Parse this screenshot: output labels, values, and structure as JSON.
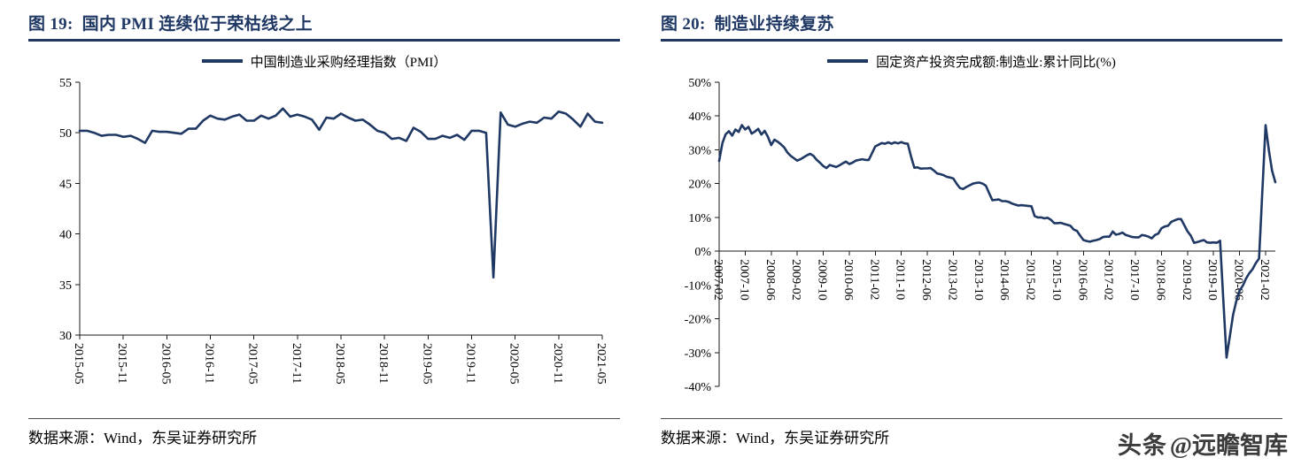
{
  "page": {
    "watermark_brand": "头条",
    "watermark_handle": "@远瞻智库"
  },
  "panels": [
    {
      "title": "图 19:  国内 PMI 连续位于荣枯线之上",
      "source_label": "数据来源：Wind，东吴证券研究所"
    },
    {
      "title": "图 20:  制造业持续复苏",
      "source_label": "数据来源：Wind，东吴证券研究所"
    }
  ],
  "chart_data": [
    {
      "type": "line",
      "title": "国内 PMI 连续位于荣枯线之上",
      "legend": "中国制造业采购经理指数（PMI）",
      "line_color": "#1f3864",
      "grid": false,
      "legend_position": "top-center",
      "ylim": [
        30,
        55
      ],
      "yticks": [
        55,
        50,
        45,
        40,
        35,
        30
      ],
      "ytick_suffix": "",
      "x_tick_every": 6,
      "x_tick_labels": [
        "2015-05",
        "2015-11",
        "2016-05",
        "2016-11",
        "2017-05",
        "2017-11",
        "2018-05",
        "2018-11",
        "2019-05",
        "2019-11",
        "2020-05",
        "2020-11",
        "2021-05"
      ],
      "values": [
        50.2,
        50.2,
        50.0,
        49.7,
        49.8,
        49.8,
        49.6,
        49.7,
        49.4,
        49.0,
        50.2,
        50.1,
        50.1,
        50.0,
        49.9,
        50.4,
        50.4,
        51.2,
        51.7,
        51.4,
        51.3,
        51.6,
        51.8,
        51.2,
        51.2,
        51.7,
        51.4,
        51.7,
        52.4,
        51.6,
        51.8,
        51.6,
        51.3,
        50.3,
        51.5,
        51.4,
        51.9,
        51.5,
        51.2,
        51.3,
        50.8,
        50.2,
        50.0,
        49.4,
        49.5,
        49.2,
        50.5,
        50.1,
        49.4,
        49.4,
        49.7,
        49.5,
        49.8,
        49.3,
        50.2,
        50.2,
        50.0,
        35.7,
        52.0,
        50.8,
        50.6,
        50.9,
        51.1,
        51.0,
        51.5,
        51.4,
        52.1,
        51.9,
        51.3,
        50.6,
        51.9,
        51.1,
        51.0
      ]
    },
    {
      "type": "line",
      "title": "制造业持续复苏",
      "legend": "固定资产投资完成额:制造业:累计同比(%)",
      "line_color": "#1f3864",
      "grid": false,
      "legend_position": "top-center",
      "ylim": [
        -40,
        50
      ],
      "yticks": [
        50,
        40,
        30,
        20,
        10,
        0,
        -10,
        -20,
        -30,
        -40
      ],
      "ytick_suffix": "%",
      "axis_at_zero": true,
      "x_tick_every": 8,
      "x_tick_labels": [
        "2007-02",
        "2007-10",
        "2008-06",
        "2009-02",
        "2009-10",
        "2010-06",
        "2011-02",
        "2011-10",
        "2012-06",
        "2013-02",
        "2013-10",
        "2014-06",
        "2015-02",
        "2015-10",
        "2016-06",
        "2017-02",
        "2017-10",
        "2018-06",
        "2019-02",
        "2019-10",
        "2020-06",
        "2021-02"
      ],
      "values": [
        26.7,
        32.0,
        34.6,
        35.5,
        34.2,
        36.0,
        35.3,
        37.3,
        36.0,
        36.8,
        34.8,
        35.4,
        36.2,
        34.5,
        35.6,
        33.8,
        31.4,
        33.0,
        32.4,
        31.6,
        30.7,
        29.2,
        28.2,
        27.5,
        26.8,
        27.2,
        27.8,
        28.4,
        28.8,
        28.2,
        27.0,
        26.2,
        25.2,
        24.6,
        25.5,
        25.2,
        24.9,
        25.4,
        26.0,
        26.5,
        25.8,
        26.2,
        26.8,
        27.0,
        27.2,
        27.0,
        27.0,
        29.0,
        31.0,
        31.5,
        32.0,
        31.8,
        32.2,
        31.8,
        32.2,
        31.9,
        32.3,
        31.9,
        31.8,
        28.0,
        24.7,
        24.8,
        24.4,
        24.5,
        24.5,
        24.6,
        23.9,
        23.0,
        22.8,
        22.5,
        22.0,
        21.8,
        21.5,
        20.0,
        18.7,
        18.4,
        19.0,
        19.5,
        20.0,
        20.2,
        20.3,
        20.0,
        19.4,
        17.2,
        15.1,
        15.2,
        15.3,
        14.8,
        14.8,
        14.6,
        14.1,
        13.8,
        13.5,
        13.6,
        13.5,
        13.4,
        13.3,
        10.4,
        10.0,
        10.0,
        9.7,
        9.9,
        9.3,
        8.3,
        8.3,
        8.4,
        8.1,
        7.8,
        7.5,
        6.4,
        6.0,
        4.6,
        3.3,
        3.0,
        2.8,
        3.1,
        3.3,
        3.6,
        4.2,
        4.3,
        4.3,
        5.8,
        4.9,
        5.1,
        5.5,
        4.8,
        4.5,
        4.2,
        4.1,
        4.1,
        4.8,
        4.6,
        4.3,
        3.8,
        4.8,
        5.2,
        6.8,
        7.3,
        7.5,
        8.7,
        9.1,
        9.5,
        9.5,
        7.7,
        5.9,
        4.6,
        2.5,
        2.7,
        3.0,
        3.3,
        2.6,
        2.5,
        2.6,
        2.5,
        3.1,
        -14.2,
        -31.5,
        -25.2,
        -18.8,
        -14.8,
        -11.7,
        -10.2,
        -8.1,
        -6.5,
        -5.3,
        -3.5,
        -2.2,
        17.6,
        37.3,
        29.8,
        23.8,
        20.4
      ]
    }
  ]
}
